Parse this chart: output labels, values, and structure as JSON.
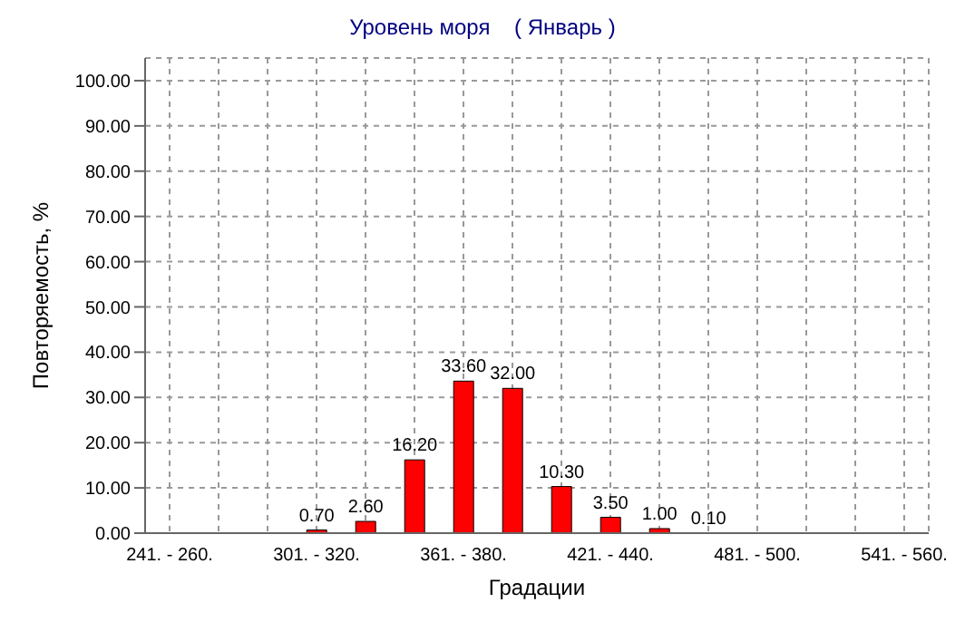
{
  "chart_data": {
    "type": "bar",
    "title": "Уровень моря    ( Январь )",
    "xlabel": "Градации",
    "ylabel": "Повторяемость, %",
    "categories": [
      "241. - 260.",
      null,
      null,
      "301. - 320.",
      null,
      null,
      "361. - 380.",
      null,
      null,
      "421. - 440.",
      null,
      null,
      "481. - 500.",
      null,
      null,
      "541. - 560."
    ],
    "values": [
      null,
      null,
      null,
      0.7,
      2.6,
      16.2,
      33.6,
      32.0,
      10.3,
      3.5,
      1.0,
      0.1,
      null,
      null,
      null,
      null
    ],
    "value_labels": [
      null,
      null,
      null,
      "0.70",
      "2.60",
      "16.20",
      "33.60",
      "32.00",
      "10.30",
      "3.50",
      "1.00",
      "0.10",
      null,
      null,
      null,
      null
    ],
    "color": "#ff0000",
    "ylim": [
      0,
      105
    ],
    "yticks": [
      {
        "value": 0,
        "label": "0.00"
      },
      {
        "value": 10,
        "label": "10.00"
      },
      {
        "value": 20,
        "label": "20.00"
      },
      {
        "value": 30,
        "label": "30.00"
      },
      {
        "value": 40,
        "label": "40.00"
      },
      {
        "value": 50,
        "label": "50.00"
      },
      {
        "value": 60,
        "label": "60.00"
      },
      {
        "value": 70,
        "label": "70.00"
      },
      {
        "value": 80,
        "label": "80.00"
      },
      {
        "value": 90,
        "label": "90.00"
      },
      {
        "value": 100,
        "label": "100.00"
      }
    ],
    "grid": true
  }
}
